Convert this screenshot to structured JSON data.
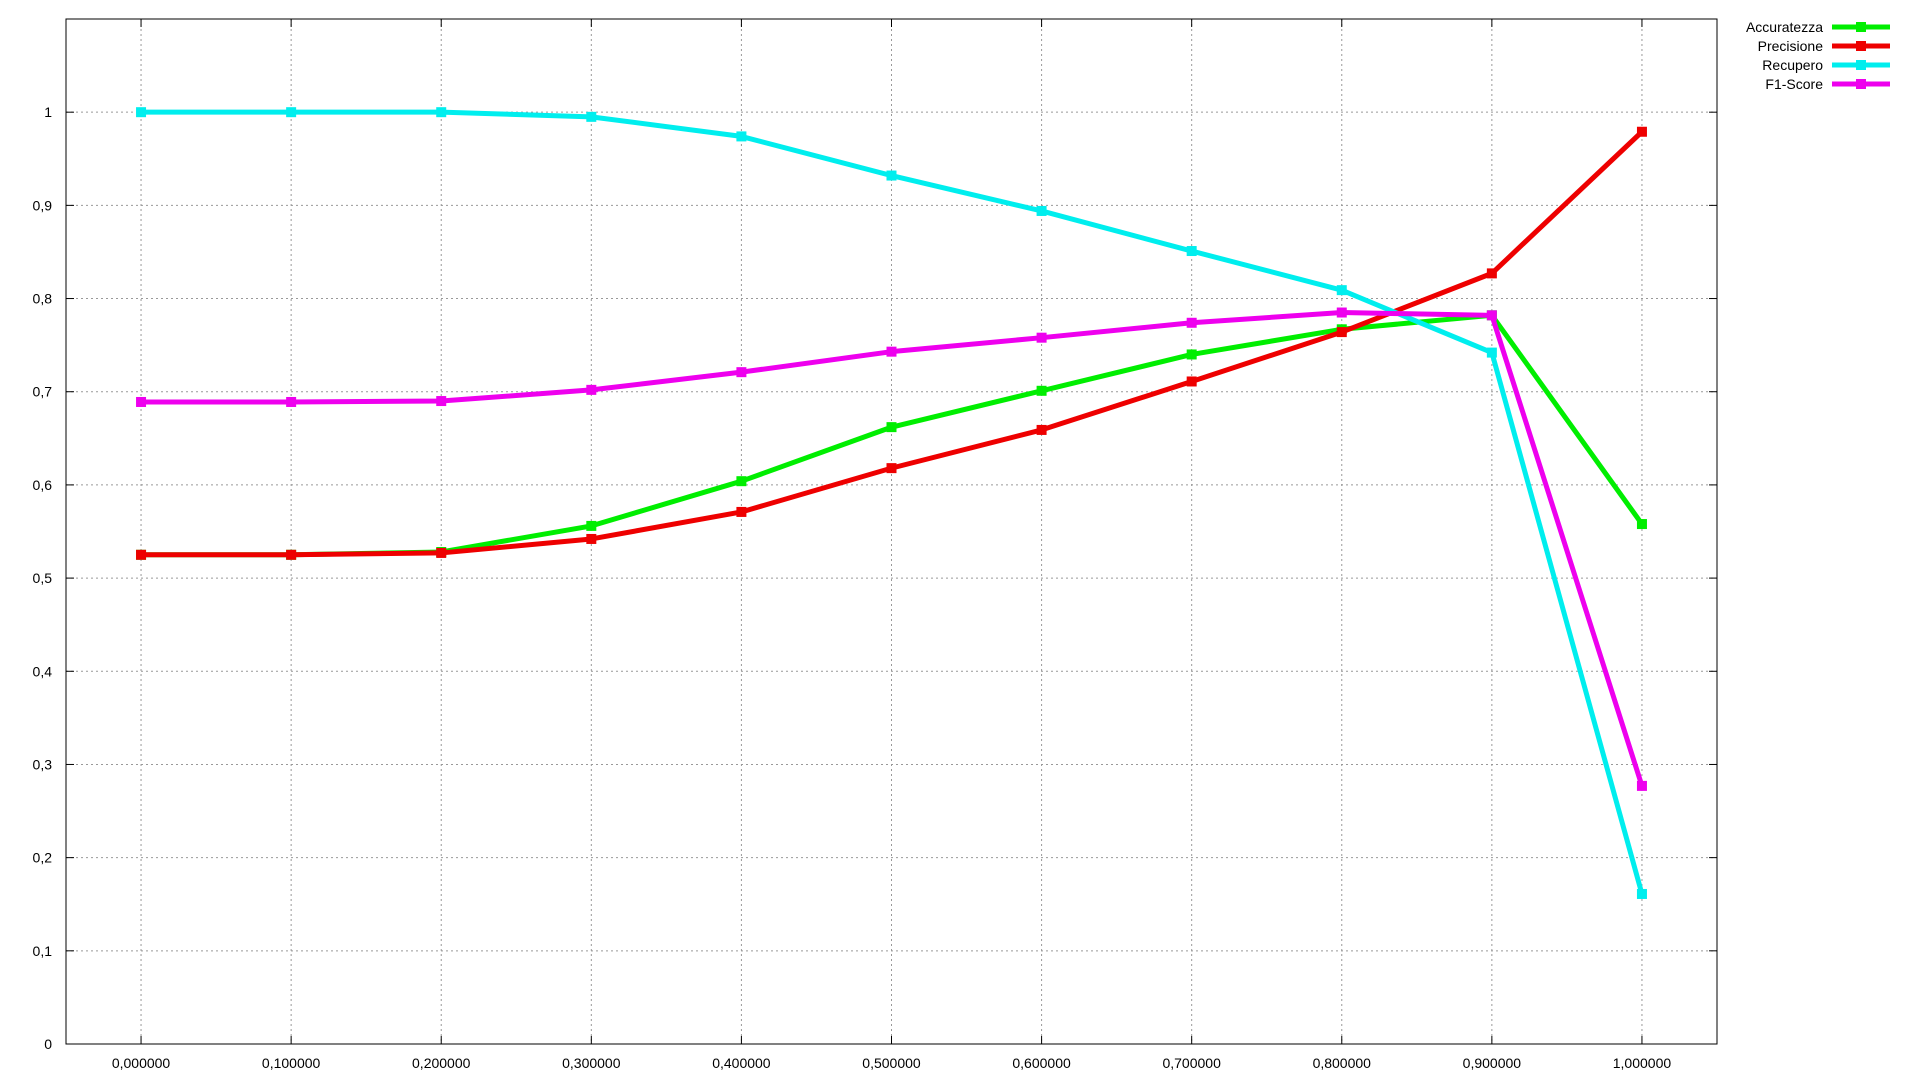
{
  "chart_data": {
    "type": "line",
    "title": "",
    "xlabel": "",
    "ylabel": "",
    "x": [
      0.0,
      0.1,
      0.2,
      0.3,
      0.4,
      0.5,
      0.6,
      0.7,
      0.8,
      0.9,
      1.0
    ],
    "x_tick_labels": [
      "0,000000",
      "0,100000",
      "0,200000",
      "0,300000",
      "0,400000",
      "0,500000",
      "0,600000",
      "0,700000",
      "0,800000",
      "0,900000",
      "1,000000"
    ],
    "y_ticks": [
      0,
      0.1,
      0.2,
      0.3,
      0.4,
      0.5,
      0.6,
      0.7,
      0.8,
      0.9,
      1
    ],
    "y_tick_labels": [
      "0",
      "0,1",
      "0,2",
      "0,3",
      "0,4",
      "0,5",
      "0,6",
      "0,7",
      "0,8",
      "0,9",
      "1"
    ],
    "xlim": [
      -0.05,
      1.05
    ],
    "ylim": [
      0,
      1.1
    ],
    "grid": true,
    "legend_position": "top-right outside",
    "series": [
      {
        "name": "Accuratezza",
        "color": "#00ee00",
        "values": [
          0.525,
          0.525,
          0.528,
          0.556,
          0.604,
          0.662,
          0.701,
          0.74,
          0.767,
          0.782,
          0.558
        ]
      },
      {
        "name": "Precisione",
        "color": "#ee0000",
        "values": [
          0.525,
          0.525,
          0.527,
          0.542,
          0.571,
          0.618,
          0.659,
          0.711,
          0.764,
          0.827,
          0.979
        ]
      },
      {
        "name": "Recupero",
        "color": "#00eeee",
        "values": [
          1.0,
          1.0,
          1.0,
          0.995,
          0.974,
          0.932,
          0.894,
          0.851,
          0.809,
          0.742,
          0.161
        ]
      },
      {
        "name": "F1-Score",
        "color": "#ee00ee",
        "values": [
          0.689,
          0.689,
          0.69,
          0.702,
          0.721,
          0.743,
          0.758,
          0.774,
          0.785,
          0.782,
          0.277
        ]
      }
    ]
  }
}
